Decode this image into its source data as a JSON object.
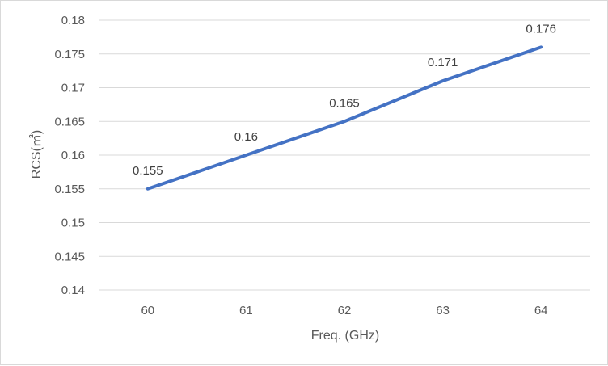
{
  "chart_data": {
    "type": "line",
    "title": "",
    "xlabel": "Freq. (GHz)",
    "ylabel": "RCS(㎡)",
    "categories": [
      "60",
      "61",
      "62",
      "63",
      "64"
    ],
    "series": [
      {
        "values": [
          0.155,
          0.16,
          0.165,
          0.171,
          0.176
        ]
      }
    ],
    "data_labels": [
      "0.155",
      "0.16",
      "0.165",
      "0.171",
      "0.176"
    ],
    "yticks": [
      "0.14",
      "0.145",
      "0.15",
      "0.155",
      "0.16",
      "0.165",
      "0.17",
      "0.175",
      "0.18"
    ],
    "ylim": [
      0.14,
      0.18
    ],
    "grid": "horizontal",
    "legend": "none",
    "colors": {
      "line": "#4472c4",
      "grid": "#d9d9d9",
      "text": "#595959"
    }
  }
}
